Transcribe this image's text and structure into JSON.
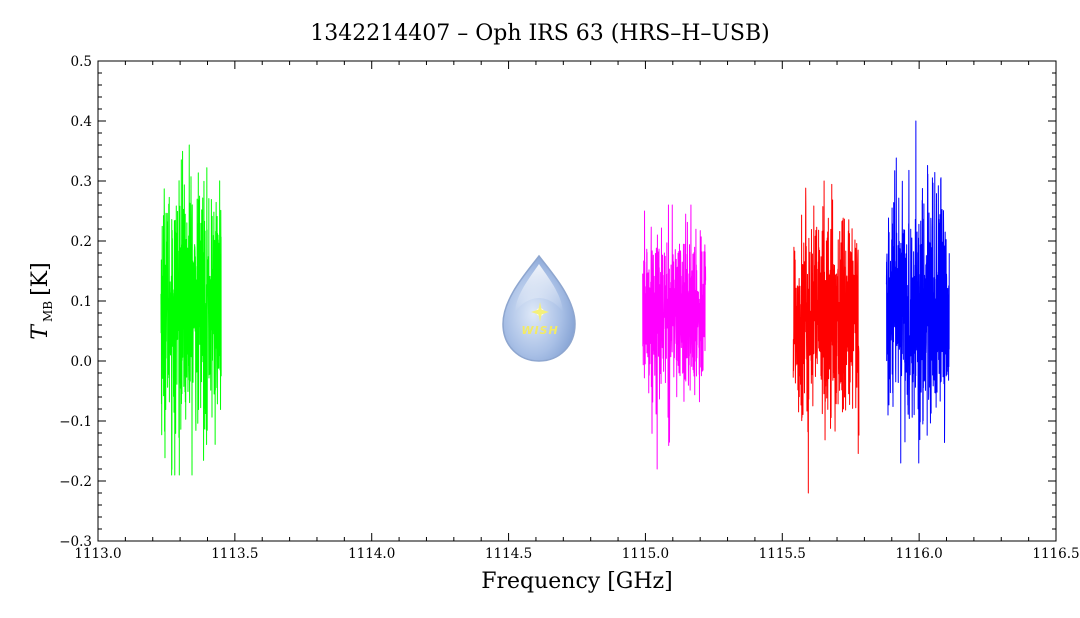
{
  "chart_data": {
    "type": "line",
    "title": "1342214407 – Oph IRS 63 (HRS–H–USB)",
    "xlabel": "Frequency [GHz]",
    "ylabel": {
      "symbol": "T",
      "subscript": "MB",
      "unit": "[K]"
    },
    "xlim": [
      1113.0,
      1116.5
    ],
    "ylim": [
      -0.3,
      0.5
    ],
    "xticks": [
      "1113.0",
      "1113.5",
      "1114.0",
      "1114.5",
      "1115.0",
      "1115.5",
      "1116.0",
      "1116.5"
    ],
    "yticks": [
      "−0.3",
      "−0.2",
      "−0.1",
      "0.0",
      "0.1",
      "0.2",
      "0.3",
      "0.4",
      "0.5"
    ],
    "grid": false,
    "logo": {
      "text": "WISH"
    },
    "series": [
      {
        "color": "#00ff00",
        "x_range": [
          1113.23,
          1113.45
        ],
        "mean": 0.09,
        "min": -0.19,
        "max": 0.36
      },
      {
        "color": "#ff00ff",
        "x_range": [
          1114.99,
          1115.22
        ],
        "mean": 0.08,
        "min": -0.18,
        "max": 0.26
      },
      {
        "color": "#ff0000",
        "x_range": [
          1115.54,
          1115.78
        ],
        "mean": 0.07,
        "min": -0.22,
        "max": 0.3
      },
      {
        "color": "#0000ff",
        "x_range": [
          1115.88,
          1116.11
        ],
        "mean": 0.08,
        "min": -0.17,
        "max": 0.4
      }
    ]
  }
}
